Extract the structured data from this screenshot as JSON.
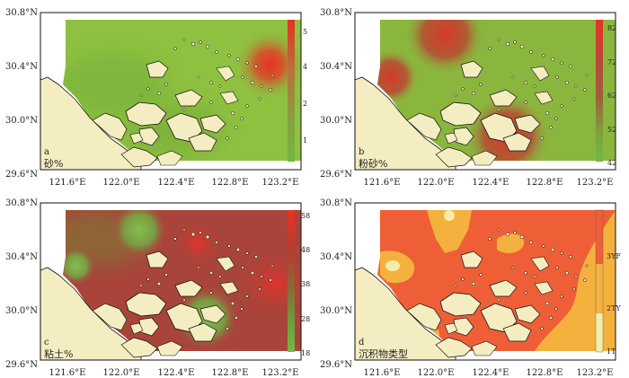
{
  "x_ticks": [
    "121.6°E",
    "122.0°E",
    "122.4°E",
    "122.8°E",
    "123.2°E"
  ],
  "y_ticks": [
    "30.8°N",
    "30.4°N",
    "30.0°N",
    "29.6°N"
  ],
  "panels": [
    {
      "letter": "a",
      "title": "砂%",
      "colorbar_ticks": [
        "5",
        "4",
        "2",
        "1"
      ],
      "colorbar_colors": [
        "#e53323",
        "#b9703a",
        "#86a040",
        "#72b840"
      ],
      "map_base": "#8ec13f",
      "blobs": [
        {
          "pos": "upper-right offshore",
          "color": "#e53323",
          "value": 5
        },
        {
          "pos": "west-central",
          "color": "#6aa838",
          "value": 1
        }
      ]
    },
    {
      "letter": "b",
      "title": "粉砂%",
      "colorbar_ticks": [
        "82",
        "72",
        "62",
        "52",
        "42"
      ],
      "colorbar_colors": [
        "#e53323",
        "#b9483a",
        "#9b6038",
        "#7ca23f",
        "#72b840"
      ],
      "map_base": "#8ab63e",
      "blobs": [
        {
          "pos": "north-central",
          "color": "#d44030",
          "value": 80
        },
        {
          "pos": "west",
          "color": "#d44030",
          "value": 78
        },
        {
          "pos": "south-central",
          "color": "#c04434",
          "value": 76
        }
      ]
    },
    {
      "letter": "c",
      "title": "粘土%",
      "colorbar_ticks": [
        "58",
        "48",
        "38",
        "28",
        "18"
      ],
      "colorbar_colors": [
        "#e53323",
        "#b43e30",
        "#8a6a38",
        "#6f9e3c",
        "#72b840"
      ],
      "map_base": "#a9443a",
      "blobs": [
        {
          "pos": "north-central",
          "color": "#7fb748",
          "value": 22
        },
        {
          "pos": "south-central",
          "color": "#7fb748",
          "value": 20
        },
        {
          "pos": "east",
          "color": "#e0362c",
          "value": 56
        }
      ]
    },
    {
      "letter": "d",
      "title": "沉积物类型",
      "colorbar_ticks": [
        "3YF",
        "2TY",
        "1T"
      ],
      "colorbar_colors": [
        "#ee5f37",
        "#f4b13e",
        "#f7ecaa"
      ],
      "map_base": "#ee5f37",
      "blobs": []
    }
  ]
}
